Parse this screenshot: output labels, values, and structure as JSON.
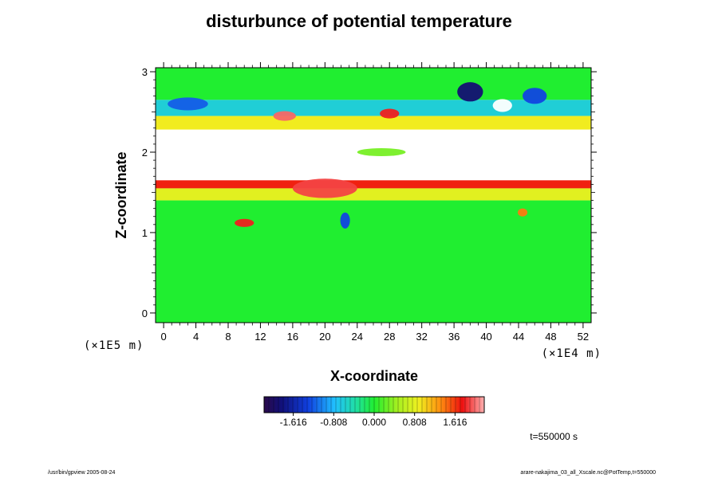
{
  "chart_data": {
    "type": "heatmap",
    "title": "disturbunce of potential temperature",
    "xlabel": "X-coordinate",
    "ylabel": "Z-coordinate",
    "x_unit": "(×1E4 m)",
    "y_unit": "(×1E5 m)",
    "xlim": [
      -1,
      53
    ],
    "ylim": [
      -0.12,
      3.05
    ],
    "x_ticks": [
      "0",
      "4",
      "8",
      "12",
      "16",
      "20",
      "24",
      "28",
      "32",
      "36",
      "40",
      "44",
      "48",
      "52"
    ],
    "y_ticks": [
      "0",
      "1",
      "2",
      "3"
    ],
    "colorbar": {
      "min": -2.2,
      "max": 2.2,
      "tick_values": [
        -1.616,
        -0.808,
        0.0,
        0.808,
        1.616
      ],
      "tick_labels": [
        "-1.616",
        "-0.808",
        "0.000",
        "0.808",
        "1.616"
      ]
    },
    "time_label": "t=550000 s",
    "bands": [
      {
        "z0": 2.65,
        "z1": 3.05,
        "level": 0.0
      },
      {
        "z0": 2.45,
        "z1": 2.65,
        "level": -0.6
      },
      {
        "z0": 2.28,
        "z1": 2.45,
        "level": 0.9
      },
      {
        "z0": 1.85,
        "z1": 2.28,
        "level": "white"
      },
      {
        "z0": 1.65,
        "z1": 1.85,
        "level": "white"
      },
      {
        "z0": 1.55,
        "z1": 1.65,
        "level": 1.7
      },
      {
        "z0": 1.4,
        "z1": 1.55,
        "level": 0.8
      },
      {
        "z0": -0.12,
        "z1": 1.4,
        "level": 0.0
      }
    ],
    "features": [
      {
        "x": 38,
        "z": 2.75,
        "rx": 1.6,
        "rz": 0.12,
        "level": -1.9
      },
      {
        "x": 3,
        "z": 2.6,
        "rx": 2.5,
        "rz": 0.08,
        "level": -1.2
      },
      {
        "x": 46,
        "z": 2.7,
        "rx": 1.5,
        "rz": 0.1,
        "level": -1.3
      },
      {
        "x": 42,
        "z": 2.58,
        "rx": 1.2,
        "rz": 0.08,
        "level": "white"
      },
      {
        "x": 15,
        "z": 2.45,
        "rx": 1.4,
        "rz": 0.06,
        "level": 2.0
      },
      {
        "x": 28,
        "z": 2.48,
        "rx": 1.2,
        "rz": 0.06,
        "level": 1.8
      },
      {
        "x": 10,
        "z": 1.12,
        "rx": 1.2,
        "rz": 0.05,
        "level": 1.8
      },
      {
        "x": 22.5,
        "z": 1.15,
        "rx": 0.6,
        "rz": 0.1,
        "level": -1.3
      },
      {
        "x": 44.5,
        "z": 1.25,
        "rx": 0.6,
        "rz": 0.05,
        "level": 1.4
      },
      {
        "x": 20,
        "z": 1.55,
        "rx": 4,
        "rz": 0.12,
        "level": 1.9
      },
      {
        "x": 27,
        "z": 2.0,
        "rx": 3,
        "rz": 0.05,
        "level": 0.3
      }
    ]
  },
  "footer": {
    "left": "/usr/bin/gpview 2005-08-24",
    "right": "arare-nakajima_03_all_Xscale.nc@PotTemp,t=550000"
  }
}
